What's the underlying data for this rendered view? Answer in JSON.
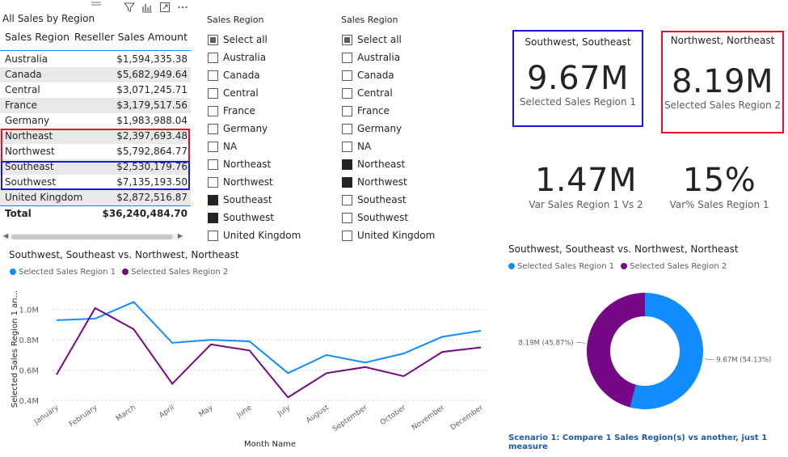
{
  "table": {
    "title": "All Sales by Region",
    "headers": [
      "Sales Region",
      "Reseller Sales Amount"
    ],
    "rows": [
      {
        "region": "Australia",
        "amount": "$1,594,335.38"
      },
      {
        "region": "Canada",
        "amount": "$5,682,949.64"
      },
      {
        "region": "Central",
        "amount": "$3,071,245.71"
      },
      {
        "region": "France",
        "amount": "$3,179,517.56"
      },
      {
        "region": "Germany",
        "amount": "$1,983,988.04"
      },
      {
        "region": "Northeast",
        "amount": "$2,397,693.48"
      },
      {
        "region": "Northwest",
        "amount": "$5,792,864.77"
      },
      {
        "region": "Southeast",
        "amount": "$2,530,179.76"
      },
      {
        "region": "Southwest",
        "amount": "$7,135,193.50"
      },
      {
        "region": "United Kingdom",
        "amount": "$2,872,516.87"
      }
    ],
    "total_label": "Total",
    "total_amount": "$36,240,484.70",
    "highlight_red_color": "#e81123",
    "highlight_blue_color": "#1a1ad6"
  },
  "slicer1": {
    "title": "Sales Region",
    "items": [
      {
        "label": "Select all",
        "state": "partial"
      },
      {
        "label": "Australia",
        "state": "unchecked"
      },
      {
        "label": "Canada",
        "state": "unchecked"
      },
      {
        "label": "Central",
        "state": "unchecked"
      },
      {
        "label": "France",
        "state": "unchecked"
      },
      {
        "label": "Germany",
        "state": "unchecked"
      },
      {
        "label": "NA",
        "state": "unchecked"
      },
      {
        "label": "Northeast",
        "state": "unchecked"
      },
      {
        "label": "Northwest",
        "state": "unchecked"
      },
      {
        "label": "Southeast",
        "state": "checked"
      },
      {
        "label": "Southwest",
        "state": "checked"
      },
      {
        "label": "United Kingdom",
        "state": "unchecked"
      }
    ]
  },
  "slicer2": {
    "title": "Sales Region",
    "items": [
      {
        "label": "Select all",
        "state": "partial"
      },
      {
        "label": "Australia",
        "state": "unchecked"
      },
      {
        "label": "Canada",
        "state": "unchecked"
      },
      {
        "label": "Central",
        "state": "unchecked"
      },
      {
        "label": "France",
        "state": "unchecked"
      },
      {
        "label": "Germany",
        "state": "unchecked"
      },
      {
        "label": "NA",
        "state": "unchecked"
      },
      {
        "label": "Northeast",
        "state": "checked"
      },
      {
        "label": "Northwest",
        "state": "checked"
      },
      {
        "label": "Southeast",
        "state": "unchecked"
      },
      {
        "label": "Southwest",
        "state": "unchecked"
      },
      {
        "label": "United Kingdom",
        "state": "unchecked"
      }
    ]
  },
  "cards": {
    "card1": {
      "top_label": "Southwest, Southeast",
      "value": "9.67M",
      "sub": "Selected Sales Region 1",
      "border_color": "#1a1ad6"
    },
    "card2": {
      "top_label": "Northwest, Northeast",
      "value": "8.19M",
      "sub": "Selected Sales Region 2",
      "border_color": "#e81123"
    },
    "card3": {
      "value": "1.47M",
      "sub": "Var Sales Region 1 Vs 2"
    },
    "card4": {
      "value": "15%",
      "sub": "Var% Sales Region 1"
    }
  },
  "chart_data": [
    {
      "type": "line",
      "title": "Southwest, Southeast vs. Northwest, Northeast",
      "xlabel": "Month Name",
      "ylabel": "Selected Sales Region 1 an...",
      "categories": [
        "January",
        "February",
        "March",
        "April",
        "May",
        "June",
        "July",
        "August",
        "September",
        "October",
        "November",
        "December"
      ],
      "series": [
        {
          "name": "Selected Sales Region 1",
          "color": "#118dff",
          "values": [
            0.93,
            0.94,
            1.05,
            0.78,
            0.8,
            0.79,
            0.58,
            0.7,
            0.65,
            0.71,
            0.82,
            0.86
          ]
        },
        {
          "name": "Selected Sales Region 2",
          "color": "#750985",
          "values": [
            0.57,
            1.01,
            0.87,
            0.51,
            0.77,
            0.73,
            0.42,
            0.58,
            0.62,
            0.56,
            0.72,
            0.75
          ]
        }
      ],
      "yticks": [
        "0.4M",
        "0.6M",
        "0.8M",
        "1.0M"
      ],
      "ylim": [
        0.4,
        1.1
      ],
      "grid": true,
      "legend": "top-left"
    },
    {
      "type": "pie",
      "title": "Southwest, Southeast vs. Northwest, Northeast",
      "categories": [
        "Selected Sales Region 1",
        "Selected Sales Region 2"
      ],
      "values": [
        9.67,
        8.19
      ],
      "colors": [
        "#118dff",
        "#750985"
      ],
      "labels": [
        "9.67M (54.13%)",
        "8.19M (45.87%)"
      ],
      "legend": "top-left"
    }
  ],
  "scenario_text": "Scenario 1: Compare 1 Sales Region(s) vs another, just 1 measure"
}
